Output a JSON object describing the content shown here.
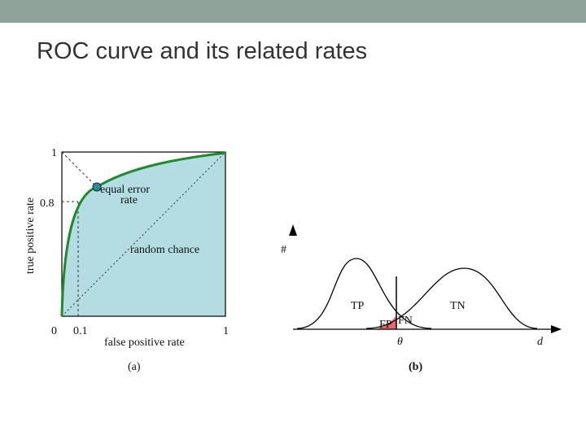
{
  "slide": {
    "title": "ROC curve and its related rates"
  },
  "figure_a": {
    "y_axis_label": "true positive rate",
    "x_axis_label": "false positive rate",
    "y_tick_labels": [
      "1",
      "0.8"
    ],
    "x_tick_labels": [
      "0",
      "0.1",
      "1"
    ],
    "annotations": [
      "equal error",
      "rate",
      "random chance"
    ],
    "caption": "(a)"
  },
  "figure_b": {
    "y_axis_label": "#",
    "x_axis_label": "d",
    "threshold_label": "θ",
    "region_labels": [
      "TP",
      "TN",
      "FP",
      "FN"
    ],
    "caption": "(b)"
  }
}
